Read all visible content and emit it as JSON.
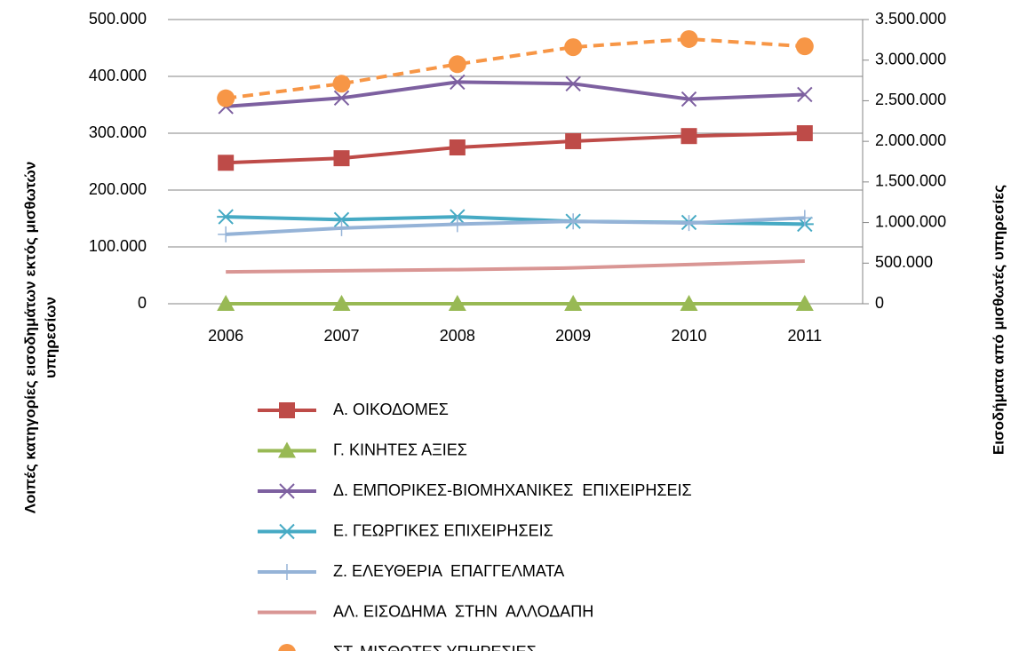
{
  "chart_data": {
    "type": "line",
    "y_label": [
      "Λοιπές κατηγορίες εισοδημάτων εκτός μισθωτών",
      "υπηρεσίων"
    ],
    "y2_label": "Εισοδήματα από μισθωτές υπηρεσίες",
    "categories": [
      "2006",
      "2007",
      "2008",
      "2009",
      "2010",
      "2011"
    ],
    "ylim": [
      0,
      500000
    ],
    "yticks": [
      0,
      {
        "value": 100000,
        "label": "100.000"
      },
      {
        "value": 200000,
        "label": "200.000"
      },
      {
        "value": 300000,
        "label": "300.000"
      },
      {
        "value": 400000,
        "label": "400.000"
      },
      {
        "value": 500000,
        "label": "500.000"
      }
    ],
    "y2lim": [
      0,
      3500000
    ],
    "y2ticks": [
      0,
      {
        "value": 500000,
        "label": "500.000"
      },
      {
        "value": 1000000,
        "label": "1.000.000"
      },
      {
        "value": 1500000,
        "label": "1.500.000"
      },
      {
        "value": 2000000,
        "label": "2.000.000"
      },
      {
        "value": 2500000,
        "label": "2.500.000"
      },
      {
        "value": 3000000,
        "label": "3.000.000"
      },
      {
        "value": 3500000,
        "label": "3.500.000"
      }
    ],
    "grid": true,
    "series": [
      {
        "name": "Α. ΟΙΚΟΔΟΜΕΣ",
        "color": "#be4b48",
        "marker": "square",
        "values": [
          248000,
          256000,
          275000,
          286000,
          295000,
          300000
        ]
      },
      {
        "name": "Γ. ΚΙΝΗΤΕΣ ΑΞΙΕΣ",
        "color": "#98b954",
        "marker": "triangle",
        "values": [
          0,
          0,
          0,
          0,
          0,
          0
        ]
      },
      {
        "name": "Δ. ΕΜΠΟΡΙΚΕΣ-ΒΙΟΜΗΧΑΝΙΚΕΣ  ΕΠΙΧΕΙΡΗΣΕΙΣ",
        "color": "#7d60a0",
        "marker": "x",
        "values": [
          347000,
          362000,
          390000,
          387000,
          360000,
          368000
        ]
      },
      {
        "name": "Ε. ΓΕΩΡΓΙΚΕΣ ΕΠΙΧΕΙΡΗΣΕΙΣ",
        "color": "#46aac4",
        "marker": "star",
        "values": [
          153000,
          148000,
          153000,
          145000,
          143000,
          140000
        ]
      },
      {
        "name": "Ζ. ΕΛΕΥΘΕΡΙΑ  ΕΠΑΓΓΕΛΜΑΤΑ",
        "color": "#95b3d7",
        "marker": "plus",
        "values": [
          122000,
          133000,
          140000,
          145000,
          142000,
          151000
        ]
      },
      {
        "name": "ΑΛ. ΕΙΣΟΔΗΜΑ  ΣΤΗΝ  ΑΛΛΟΔΑΠΗ",
        "color": "#d99694",
        "marker": "none",
        "values": [
          56000,
          58000,
          60000,
          63000,
          69000,
          75000
        ]
      },
      {
        "name": "ΣΤ. ΜΙΣΘΩΤΕΣ ΥΠΗΡΕΣΙΕΣ",
        "color": "#f79646",
        "marker": "circle",
        "dash": true,
        "axis": "y2",
        "values": [
          2530000,
          2710000,
          2950000,
          3160000,
          3260000,
          3170000
        ]
      }
    ]
  }
}
